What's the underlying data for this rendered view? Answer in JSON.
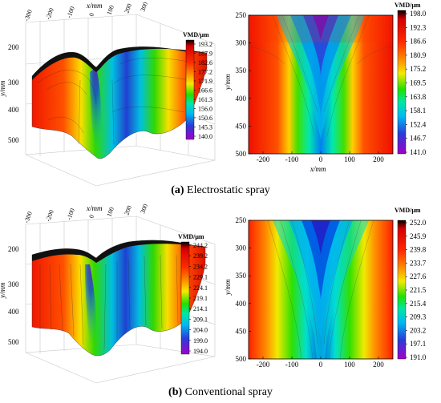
{
  "chart_data": [
    {
      "id": "a-3d",
      "type": "surface3d",
      "x_ticks": [
        "-300",
        "-200",
        "-100",
        "0",
        "100",
        "200",
        "300"
      ],
      "xlabel": "x/mm",
      "y_ticks": [
        "200",
        "300",
        "400",
        "500"
      ],
      "ylabel": "y/mm",
      "colorbar": {
        "title": "VMD/μm",
        "ticks": [
          "193.2",
          "187.9",
          "182.6",
          "177.2",
          "171.9",
          "166.6",
          "161.3",
          "156.0",
          "150.6",
          "145.3",
          "140.0"
        ]
      }
    },
    {
      "id": "a-2d",
      "type": "heatmap",
      "x_ticks": [
        -200,
        -100,
        0,
        100,
        200
      ],
      "xlabel": "x/mm",
      "xlim": [
        -250,
        250
      ],
      "y_ticks": [
        250,
        300,
        350,
        400,
        450,
        500
      ],
      "ylabel": "y/mm",
      "ylim": [
        250,
        500
      ],
      "value_range": [
        141.0,
        198.0
      ],
      "colorbar": {
        "title": "VMD/μm",
        "ticks": [
          "198.0",
          "192.3",
          "186.6",
          "180.9",
          "175.2",
          "169.5",
          "163.8",
          "158.1",
          "152.4",
          "146.7",
          "141.0"
        ]
      }
    },
    {
      "id": "b-3d",
      "type": "surface3d",
      "x_ticks": [
        "-300",
        "-200",
        "-100",
        "0",
        "100",
        "200",
        "300"
      ],
      "xlabel": "x/mm",
      "y_ticks": [
        "200",
        "300",
        "400",
        "500"
      ],
      "ylabel": "y/mm",
      "colorbar": {
        "title": "VMD/μm",
        "ticks": [
          "244.2",
          "239.2",
          "234.2",
          "229.1",
          "224.1",
          "219.1",
          "214.1",
          "209.1",
          "204.0",
          "199.0",
          "194.0"
        ]
      }
    },
    {
      "id": "b-2d",
      "type": "heatmap",
      "x_ticks": [
        -200,
        -100,
        0,
        100,
        200
      ],
      "xlabel": "x/mm",
      "xlim": [
        -250,
        250
      ],
      "y_ticks": [
        250,
        300,
        350,
        400,
        450,
        500
      ],
      "ylabel": "y/mm",
      "ylim": [
        250,
        500
      ],
      "value_range": [
        191.0,
        252.0
      ],
      "colorbar": {
        "title": "VMD/μm",
        "ticks": [
          "252.0",
          "245.9",
          "239.8",
          "233.7",
          "227.6",
          "221.5",
          "215.4",
          "209.3",
          "203.2",
          "197.1",
          "191.0"
        ]
      }
    }
  ],
  "captions": {
    "a_letter": "(a)",
    "a_text": " Electrostatic spray",
    "b_letter": "(b)",
    "b_text": " Conventional spray"
  }
}
